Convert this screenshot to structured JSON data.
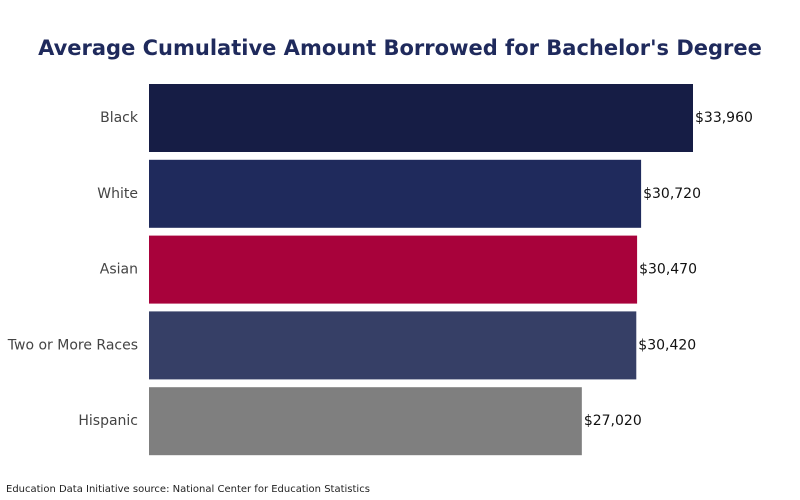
{
  "chart_data": {
    "type": "bar",
    "orientation": "horizontal",
    "title": "Average Cumulative Amount Borrowed for Bachelor's Degree",
    "categories": [
      "Black",
      "White",
      "Asian",
      "Two or More Races",
      "Hispanic"
    ],
    "values": [
      33960,
      30720,
      30470,
      30420,
      27020
    ],
    "value_labels": [
      "$33,960",
      "$30,720",
      "$30,470",
      "$30,420",
      "$27,020"
    ],
    "colors": [
      "#161d45",
      "#1f2a5c",
      "#a8023b",
      "#363f66",
      "#7f7f7f"
    ],
    "source": "Education Data Initiative source: National Center for Education Statistics"
  }
}
